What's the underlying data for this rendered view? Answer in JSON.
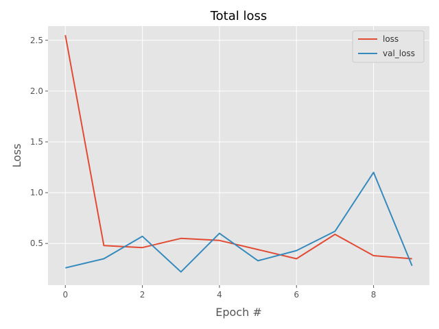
{
  "chart_data": {
    "type": "line",
    "title": "Total loss",
    "xlabel": "Epoch #",
    "ylabel": "Loss",
    "x": [
      0,
      1,
      2,
      3,
      4,
      5,
      6,
      7,
      8,
      9
    ],
    "xticks": [
      0,
      2,
      4,
      6,
      8
    ],
    "yticks": [
      0.5,
      1.0,
      1.5,
      2.0,
      2.5
    ],
    "xlim": [
      -0.45,
      9.45
    ],
    "ylim": [
      0.09,
      2.64
    ],
    "grid": true,
    "legend": "top-right",
    "series": [
      {
        "name": "loss",
        "color": "#e24a33",
        "values": [
          2.55,
          0.48,
          0.46,
          0.55,
          0.53,
          0.44,
          0.35,
          0.59,
          0.38,
          0.35
        ]
      },
      {
        "name": "val_loss",
        "color": "#348abd",
        "values": [
          0.26,
          0.35,
          0.57,
          0.22,
          0.6,
          0.33,
          0.43,
          0.62,
          1.2,
          0.28
        ]
      }
    ]
  },
  "colors": {
    "plot_background": "#e5e5e5",
    "grid": "#ffffff",
    "tick_text": "#555555"
  }
}
